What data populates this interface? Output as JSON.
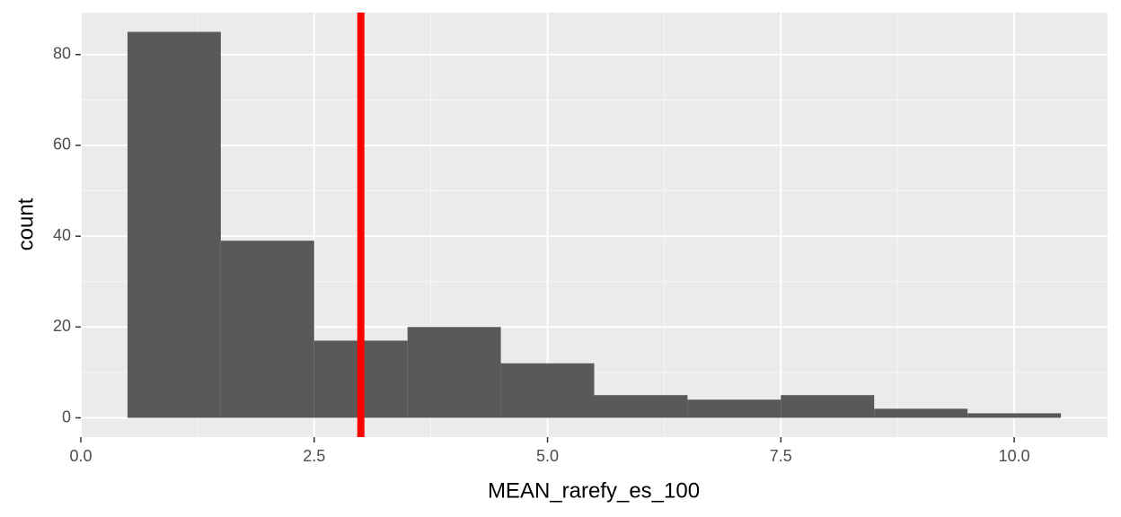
{
  "chart_data": {
    "type": "histogram",
    "xlabel": "MEAN_rarefy_es_100",
    "ylabel": "count",
    "bins": [
      0.5,
      1.5,
      2.5,
      3.5,
      4.5,
      5.5,
      6.5,
      7.5,
      8.5,
      9.5,
      10.5
    ],
    "values": [
      85,
      39,
      17,
      20,
      12,
      5,
      4,
      5,
      2,
      1
    ],
    "color": "#595959",
    "vline": 3,
    "vline_color": "#ff0000",
    "xlim": [
      0,
      11
    ],
    "ylim": [
      -4.25,
      89.25
    ],
    "xticks": [
      {
        "value": 0,
        "label": "0.0"
      },
      2.5,
      {
        "value": 5,
        "label": "5.0"
      },
      7.5,
      {
        "value": 10,
        "label": "10.0"
      }
    ],
    "yticks": [
      0,
      20,
      40,
      60,
      80
    ],
    "grid": true,
    "minor_grid": true
  }
}
